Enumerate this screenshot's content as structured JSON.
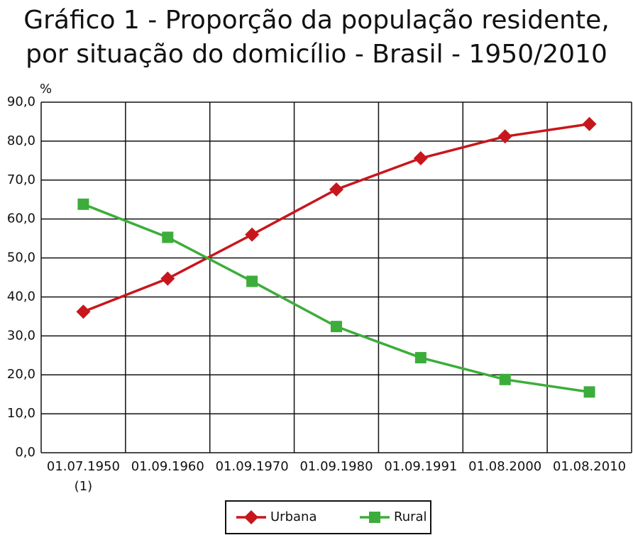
{
  "chart_data": {
    "type": "line",
    "title": [
      "Gráfico 1 - Proporção da população residente,",
      "por situação do domicílio - Brasil - 1950/2010"
    ],
    "y_label": "%",
    "categories": [
      "01.07.1950",
      "01.09.1960",
      "01.09.1970",
      "01.09.1980",
      "01.09.1991",
      "01.08.2000",
      "01.08.2010"
    ],
    "category_notes": [
      "(1)",
      null,
      null,
      null,
      null,
      null,
      null
    ],
    "series": [
      {
        "name": "Urbana",
        "color": "#c8161d",
        "marker": "diamond",
        "values": [
          36.2,
          44.7,
          56.0,
          67.6,
          75.6,
          81.2,
          84.4
        ]
      },
      {
        "name": "Rural",
        "color": "#3cad3b",
        "marker": "square",
        "values": [
          63.8,
          55.3,
          44.0,
          32.4,
          24.4,
          18.8,
          15.6
        ]
      }
    ],
    "ylim": [
      0,
      90
    ],
    "yticks": [
      {
        "value": 0,
        "label": "0,0"
      },
      {
        "value": 10,
        "label": "10,0"
      },
      {
        "value": 20,
        "label": "20,0"
      },
      {
        "value": 30,
        "label": "30,0"
      },
      {
        "value": 40,
        "label": "40,0"
      },
      {
        "value": 50,
        "label": "50,0"
      },
      {
        "value": 60,
        "label": "60,0"
      },
      {
        "value": 70,
        "label": "70,0"
      },
      {
        "value": 80,
        "label": "80,0"
      },
      {
        "value": 90,
        "label": "90,0"
      }
    ],
    "grid": true
  }
}
